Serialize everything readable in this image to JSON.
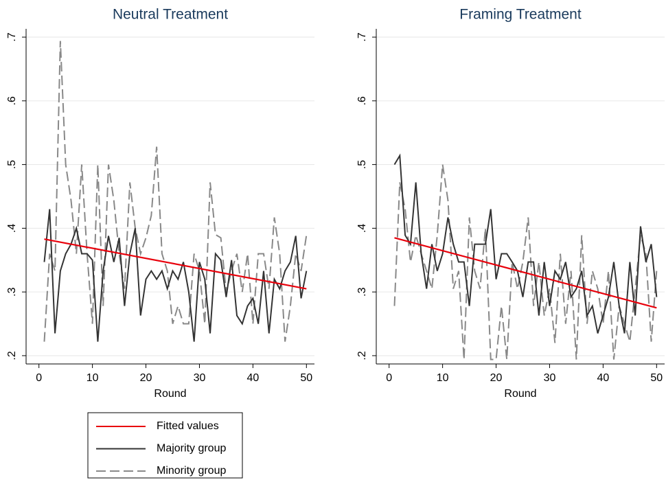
{
  "chart_data": [
    {
      "type": "line",
      "title": "Neutral Treatment",
      "x_label": "Round",
      "xlim": [
        -2.4,
        51.5
      ],
      "ylim": [
        0.187,
        0.713
      ],
      "xticks": [
        0,
        10,
        20,
        30,
        40,
        50
      ],
      "yticks": [
        {
          "value": 0.2,
          "label": ".2"
        },
        {
          "value": 0.3,
          "label": ".3"
        },
        {
          "value": 0.4,
          "label": ".4"
        },
        {
          "value": 0.5,
          "label": ".5"
        },
        {
          "value": 0.6,
          "label": ".6"
        },
        {
          "value": 0.7,
          "label": ".7"
        }
      ],
      "grid": true,
      "x": [
        1,
        2,
        3,
        4,
        5,
        6,
        7,
        8,
        9,
        10,
        11,
        12,
        13,
        14,
        15,
        16,
        17,
        18,
        19,
        20,
        21,
        22,
        23,
        24,
        25,
        26,
        27,
        28,
        29,
        30,
        31,
        32,
        33,
        34,
        35,
        36,
        37,
        38,
        39,
        40,
        41,
        42,
        43,
        44,
        45,
        46,
        47,
        48,
        49,
        50
      ],
      "series": [
        {
          "name": "Fitted values",
          "color": "#e8000b",
          "dash": "solid",
          "x": [
            1,
            50
          ],
          "values": [
            0.383,
            0.305
          ]
        },
        {
          "name": "Majority group",
          "color": "#333333",
          "dash": "solid",
          "values": [
            0.347,
            0.43,
            0.235,
            0.333,
            0.36,
            0.375,
            0.4,
            0.36,
            0.36,
            0.35,
            0.222,
            0.333,
            0.388,
            0.347,
            0.385,
            0.278,
            0.36,
            0.4,
            0.263,
            0.32,
            0.333,
            0.32,
            0.333,
            0.305,
            0.333,
            0.32,
            0.347,
            0.3,
            0.222,
            0.347,
            0.32,
            0.235,
            0.36,
            0.35,
            0.292,
            0.35,
            0.263,
            0.25,
            0.278,
            0.29,
            0.25,
            0.333,
            0.235,
            0.32,
            0.305,
            0.333,
            0.347,
            0.388,
            0.29,
            0.333
          ]
        },
        {
          "name": "Minority group",
          "color": "#888888",
          "dash": "dashed",
          "values": [
            0.222,
            0.36,
            0.333,
            0.694,
            0.5,
            0.444,
            0.36,
            0.5,
            0.36,
            0.25,
            0.5,
            0.278,
            0.5,
            0.444,
            0.36,
            0.305,
            0.472,
            0.4,
            0.36,
            0.385,
            0.42,
            0.528,
            0.36,
            0.333,
            0.25,
            0.278,
            0.25,
            0.25,
            0.36,
            0.333,
            0.25,
            0.472,
            0.39,
            0.385,
            0.3,
            0.333,
            0.36,
            0.3,
            0.36,
            0.25,
            0.36,
            0.36,
            0.305,
            0.417,
            0.36,
            0.222,
            0.278,
            0.36,
            0.333,
            0.389
          ]
        }
      ]
    },
    {
      "type": "line",
      "title": "Framing Treatment",
      "x_label": "Round",
      "xlim": [
        -2.4,
        51.5
      ],
      "ylim": [
        0.187,
        0.713
      ],
      "xticks": [
        0,
        10,
        20,
        30,
        40,
        50
      ],
      "yticks": [
        {
          "value": 0.2,
          "label": ".2"
        },
        {
          "value": 0.3,
          "label": ".3"
        },
        {
          "value": 0.4,
          "label": ".4"
        },
        {
          "value": 0.5,
          "label": ".5"
        },
        {
          "value": 0.6,
          "label": ".6"
        },
        {
          "value": 0.7,
          "label": ".7"
        }
      ],
      "grid": true,
      "x": [
        1,
        2,
        3,
        4,
        5,
        6,
        7,
        8,
        9,
        10,
        11,
        12,
        13,
        14,
        15,
        16,
        17,
        18,
        19,
        20,
        21,
        22,
        23,
        24,
        25,
        26,
        27,
        28,
        29,
        30,
        31,
        32,
        33,
        34,
        35,
        36,
        37,
        38,
        39,
        40,
        41,
        42,
        43,
        44,
        45,
        46,
        47,
        48,
        49,
        50
      ],
      "series": [
        {
          "name": "Fitted values",
          "color": "#e8000b",
          "dash": "solid",
          "x": [
            1,
            50
          ],
          "values": [
            0.385,
            0.275
          ]
        },
        {
          "name": "Majority group",
          "color": "#333333",
          "dash": "solid",
          "values": [
            0.5,
            0.514,
            0.389,
            0.375,
            0.472,
            0.36,
            0.305,
            0.375,
            0.333,
            0.36,
            0.417,
            0.375,
            0.347,
            0.347,
            0.278,
            0.375,
            0.375,
            0.375,
            0.43,
            0.32,
            0.36,
            0.36,
            0.347,
            0.333,
            0.292,
            0.347,
            0.347,
            0.263,
            0.347,
            0.278,
            0.333,
            0.32,
            0.347,
            0.292,
            0.305,
            0.333,
            0.263,
            0.278,
            0.235,
            0.263,
            0.292,
            0.347,
            0.278,
            0.235,
            0.347,
            0.263,
            0.403,
            0.347,
            0.375,
            0.292
          ]
        },
        {
          "name": "Minority group",
          "color": "#888888",
          "dash": "dashed",
          "values": [
            0.278,
            0.472,
            0.43,
            0.347,
            0.389,
            0.36,
            0.333,
            0.305,
            0.389,
            0.5,
            0.444,
            0.305,
            0.333,
            0.194,
            0.417,
            0.333,
            0.305,
            0.4,
            0.194,
            0.194,
            0.278,
            0.194,
            0.347,
            0.305,
            0.347,
            0.417,
            0.278,
            0.347,
            0.263,
            0.305,
            0.22,
            0.36,
            0.25,
            0.333,
            0.194,
            0.389,
            0.25,
            0.333,
            0.305,
            0.25,
            0.333,
            0.194,
            0.278,
            0.25,
            0.222,
            0.305,
            0.389,
            0.36,
            0.222,
            0.333
          ]
        }
      ]
    }
  ]
}
